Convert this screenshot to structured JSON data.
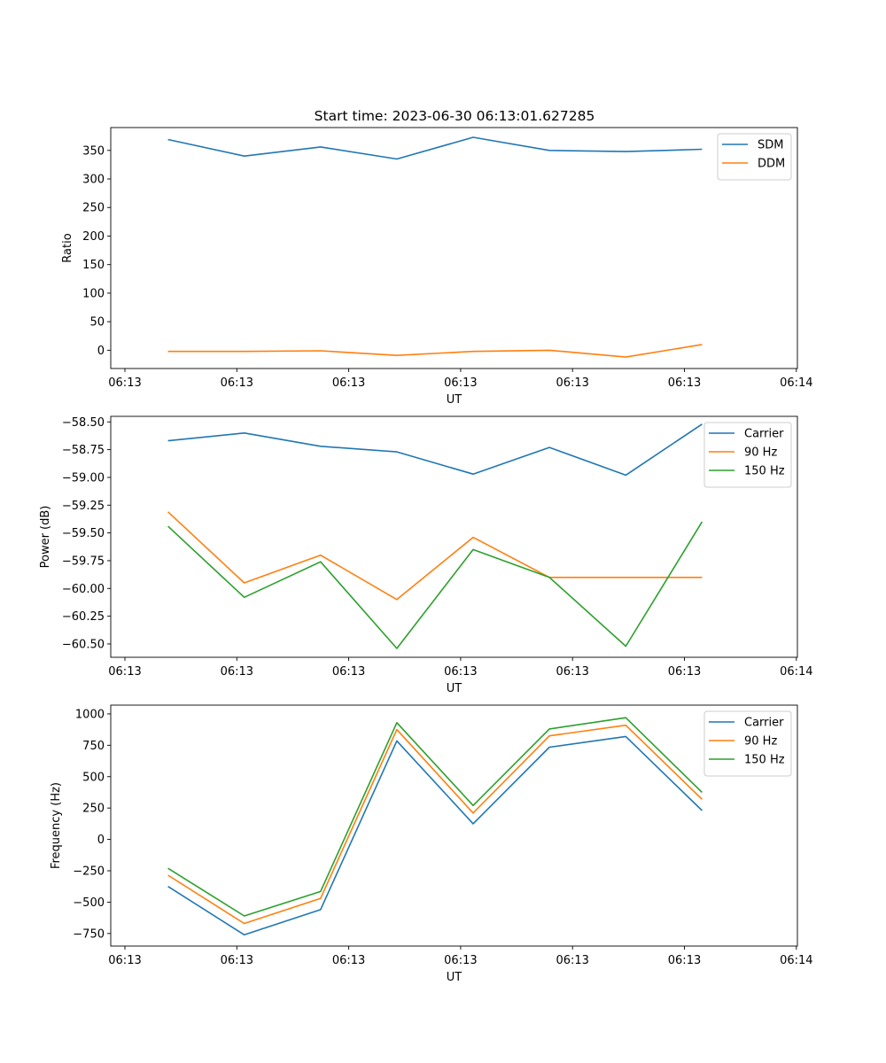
{
  "figure": {
    "title": "Start time: 2023-06-30 06:13:01.627285"
  },
  "chart_data": [
    {
      "type": "line",
      "title": "Start time: 2023-06-30 06:13:01.627285",
      "xlabel": "UT",
      "ylabel": "Ratio",
      "x_tick_labels": [
        "06:13",
        "06:13",
        "06:13",
        "06:13",
        "06:13",
        "06:13",
        "06:14"
      ],
      "y_ticks": [
        0,
        50,
        100,
        150,
        200,
        250,
        300,
        350
      ],
      "ylim": [
        -32,
        390
      ],
      "x": [
        1,
        2,
        3,
        4,
        5,
        6,
        7,
        8
      ],
      "series": [
        {
          "name": "SDM",
          "color": "#1f77b4",
          "values": [
            369,
            340,
            356,
            335,
            373,
            350,
            348,
            352
          ]
        },
        {
          "name": "DDM",
          "color": "#ff7f0e",
          "values": [
            -2,
            -2,
            -1,
            -9,
            -2,
            0,
            -12,
            10
          ]
        }
      ],
      "legend": "top-right"
    },
    {
      "type": "line",
      "xlabel": "UT",
      "ylabel": "Power (dB)",
      "x_tick_labels": [
        "06:13",
        "06:13",
        "06:13",
        "06:13",
        "06:13",
        "06:13",
        "06:14"
      ],
      "y_ticks": [
        -58.5,
        -58.75,
        -59.0,
        -59.25,
        -59.5,
        -59.75,
        -60.0,
        -60.25,
        -60.5
      ],
      "y_tick_labels": [
        "−58.50",
        "−58.75",
        "−59.00",
        "−59.25",
        "−59.50",
        "−59.75",
        "−60.00",
        "−60.25",
        "−60.50"
      ],
      "ylim": [
        -60.62,
        -58.45
      ],
      "x": [
        1,
        2,
        3,
        4,
        5,
        6,
        7,
        8
      ],
      "series": [
        {
          "name": "Carrier",
          "color": "#1f77b4",
          "values": [
            -58.67,
            -58.6,
            -58.72,
            -58.77,
            -58.97,
            -58.73,
            -58.98,
            -58.52
          ]
        },
        {
          "name": "90 Hz",
          "color": "#ff7f0e",
          "values": [
            -59.31,
            -59.95,
            -59.7,
            -60.1,
            -59.54,
            -59.9,
            -59.9,
            -59.9
          ]
        },
        {
          "name": "150 Hz",
          "color": "#2ca02c",
          "values": [
            -59.44,
            -60.08,
            -59.76,
            -60.54,
            -59.65,
            -59.9,
            -60.52,
            -59.4
          ]
        }
      ],
      "legend": "top-right"
    },
    {
      "type": "line",
      "xlabel": "UT",
      "ylabel": "Frequency (Hz)",
      "x_tick_labels": [
        "06:13",
        "06:13",
        "06:13",
        "06:13",
        "06:13",
        "06:13",
        "06:14"
      ],
      "y_ticks": [
        -750,
        -500,
        -250,
        0,
        250,
        500,
        750,
        1000
      ],
      "y_tick_labels": [
        "−750",
        "−500",
        "−250",
        "0",
        "250",
        "500",
        "750",
        "1000"
      ],
      "ylim": [
        -850,
        1070
      ],
      "x": [
        1,
        2,
        3,
        4,
        5,
        6,
        7,
        8
      ],
      "series": [
        {
          "name": "Carrier",
          "color": "#1f77b4",
          "values": [
            -375,
            -760,
            -560,
            785,
            125,
            735,
            820,
            230
          ]
        },
        {
          "name": "90 Hz",
          "color": "#ff7f0e",
          "values": [
            -285,
            -670,
            -470,
            875,
            210,
            825,
            910,
            320
          ]
        },
        {
          "name": "150 Hz",
          "color": "#2ca02c",
          "values": [
            -230,
            -610,
            -415,
            930,
            270,
            880,
            970,
            375
          ]
        }
      ],
      "legend": "top-right"
    }
  ]
}
